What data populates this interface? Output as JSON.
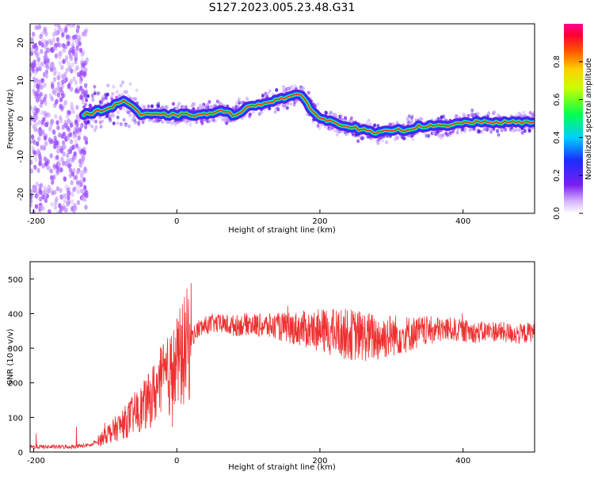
{
  "figure": {
    "title": "S127.2023.005.23.48.G31"
  },
  "chart_data": [
    {
      "type": "heatmap",
      "xlabel": "Height of straight line (km)",
      "ylabel": "Frequency (Hz)",
      "xlim": [
        -205,
        500
      ],
      "ylim": [
        -25,
        25
      ],
      "xticks": [
        -200,
        0,
        200,
        400
      ],
      "yticks": [
        -20,
        -10,
        0,
        10,
        20
      ],
      "grid": false,
      "ridge": {
        "x": [
          -130,
          -110,
          -90,
          -75,
          -60,
          -50,
          -40,
          -20,
          0,
          20,
          40,
          60,
          80,
          100,
          120,
          140,
          160,
          175,
          190,
          200,
          220,
          240,
          260,
          280,
          300,
          320,
          340,
          360,
          380,
          400,
          420,
          440,
          460,
          480,
          500
        ],
        "y": [
          1,
          2,
          3,
          5,
          3,
          1,
          1,
          1,
          1,
          1,
          1,
          2,
          1,
          3,
          4,
          5,
          6,
          6,
          2,
          0,
          -1,
          -2,
          -3,
          -4,
          -3,
          -3,
          -2,
          -2,
          -2,
          -1,
          -1,
          -1,
          -1,
          -1,
          -1
        ]
      },
      "colorbar": {
        "label": "Normalized spectral amplitude",
        "range": [
          0.0,
          1.0
        ],
        "ticks": [
          "0.0",
          "0.2",
          "0.4",
          "0.6",
          "0.8"
        ]
      }
    },
    {
      "type": "line",
      "xlabel": "Height of straight line (km)",
      "ylabel": "SNR (10 * v/v)",
      "xlim": [
        -205,
        500
      ],
      "ylim": [
        0,
        550
      ],
      "xticks": [
        -200,
        0,
        200,
        400
      ],
      "yticks": [
        0,
        100,
        200,
        300,
        400,
        500
      ],
      "grid": false,
      "series": [
        {
          "color": "#ee3030",
          "x": [
            -205,
            -180,
            -150,
            -120,
            -110,
            -100,
            -90,
            -80,
            -70,
            -60,
            -50,
            -40,
            -30,
            -20,
            -10,
            0,
            10,
            20,
            30,
            40,
            50,
            60,
            80,
            100,
            120,
            150,
            180,
            200,
            220,
            240,
            260,
            280,
            300,
            320,
            350,
            380,
            400,
            420,
            440,
            460,
            480,
            500
          ],
          "y": [
            15,
            15,
            15,
            20,
            30,
            50,
            60,
            75,
            90,
            110,
            125,
            145,
            175,
            205,
            220,
            255,
            290,
            330,
            355,
            365,
            372,
            370,
            365,
            370,
            365,
            360,
            355,
            350,
            345,
            340,
            335,
            330,
            338,
            340,
            350,
            355,
            350,
            345,
            350,
            345,
            340,
            350
          ]
        }
      ]
    }
  ]
}
